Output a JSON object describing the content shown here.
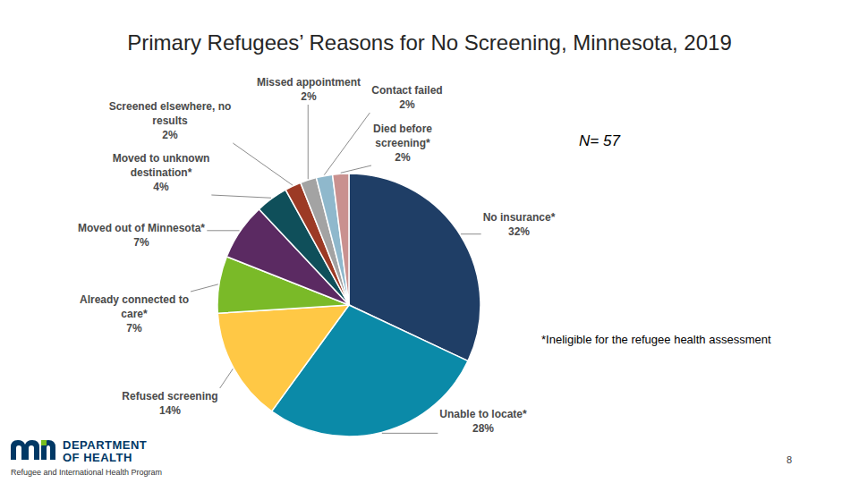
{
  "chart_data": {
    "type": "pie",
    "title": "Primary Refugees’ Reasons for No Screening, Minnesota, 2019",
    "categories": [
      "No insurance*",
      "Unable to locate*",
      "Refused screening",
      "Already connected to care*",
      "Moved out of Minnesota*",
      "Moved to unknown destination*",
      "Screened elsewhere, no results",
      "Missed appointment",
      "Contact failed",
      "Died before screening*"
    ],
    "values": [
      32,
      28,
      14,
      7,
      7,
      4,
      2,
      2,
      2,
      2
    ],
    "value_labels": [
      "32%",
      "28%",
      "14%",
      "7%",
      "7%",
      "4%",
      "2%",
      "2%",
      "2%",
      "2%"
    ],
    "colors": [
      "#1f3e66",
      "#0b8aa8",
      "#ffc845",
      "#7aba28",
      "#5b2a62",
      "#0f4f5a",
      "#9c3a25",
      "#a3a3a3",
      "#8fb8cc",
      "#c9918f"
    ],
    "data_labels": true,
    "annotations": [
      "N= 57",
      "*Ineligible for the refugee health assessment"
    ]
  },
  "page": {
    "number": "8",
    "logo_lines": [
      "DEPARTMENT",
      "OF HEALTH"
    ],
    "program": "Refugee and International Health Program"
  }
}
